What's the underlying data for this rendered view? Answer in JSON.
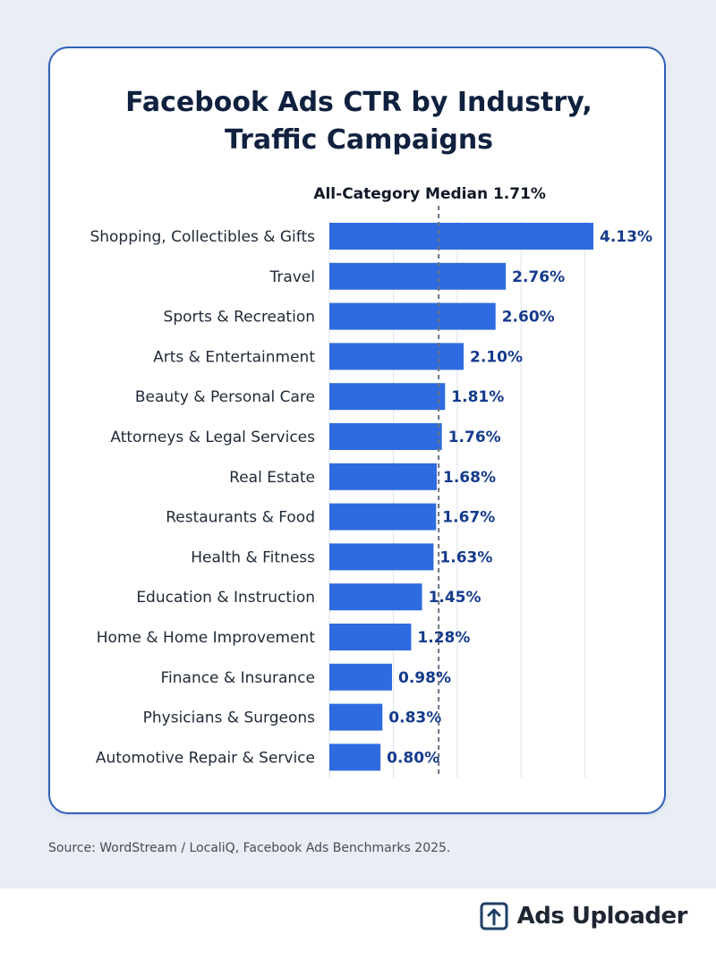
{
  "chart_data": {
    "type": "bar",
    "orientation": "horizontal",
    "title_lines": [
      "Facebook Ads CTR by Industry,",
      "Traffic Campaigns"
    ],
    "categories": [
      "Shopping, Collectibles & Gifts",
      "Travel",
      "Sports & Recreation",
      "Arts & Entertainment",
      "Beauty & Personal Care",
      "Attorneys & Legal Services",
      "Real Estate",
      "Restaurants & Food",
      "Health & Fitness",
      "Education & Instruction",
      "Home & Home Improvement",
      "Finance & Insurance",
      "Physicians & Surgeons",
      "Automotive Repair & Service"
    ],
    "values": [
      4.13,
      2.76,
      2.6,
      2.1,
      1.81,
      1.76,
      1.68,
      1.67,
      1.63,
      1.45,
      1.28,
      0.98,
      0.83,
      0.8
    ],
    "value_labels": [
      "4.13%",
      "2.76%",
      "2.60%",
      "2.10%",
      "1.81%",
      "1.76%",
      "1.68%",
      "1.67%",
      "1.63%",
      "1.45%",
      "1.28%",
      "0.98%",
      "0.83%",
      "0.80%"
    ],
    "xlim": [
      0,
      4.2
    ],
    "grid": true,
    "reference_line": {
      "label": "All-Category Median 1.71%",
      "value": 1.71
    },
    "bar_color": "#2f6be0",
    "value_label_color": "#143b8c"
  },
  "source": "Source: WordStream / LocaliQ, Facebook Ads Benchmarks 2025.",
  "brand": {
    "name": "Ads Uploader",
    "icon": "upload-box-icon"
  }
}
